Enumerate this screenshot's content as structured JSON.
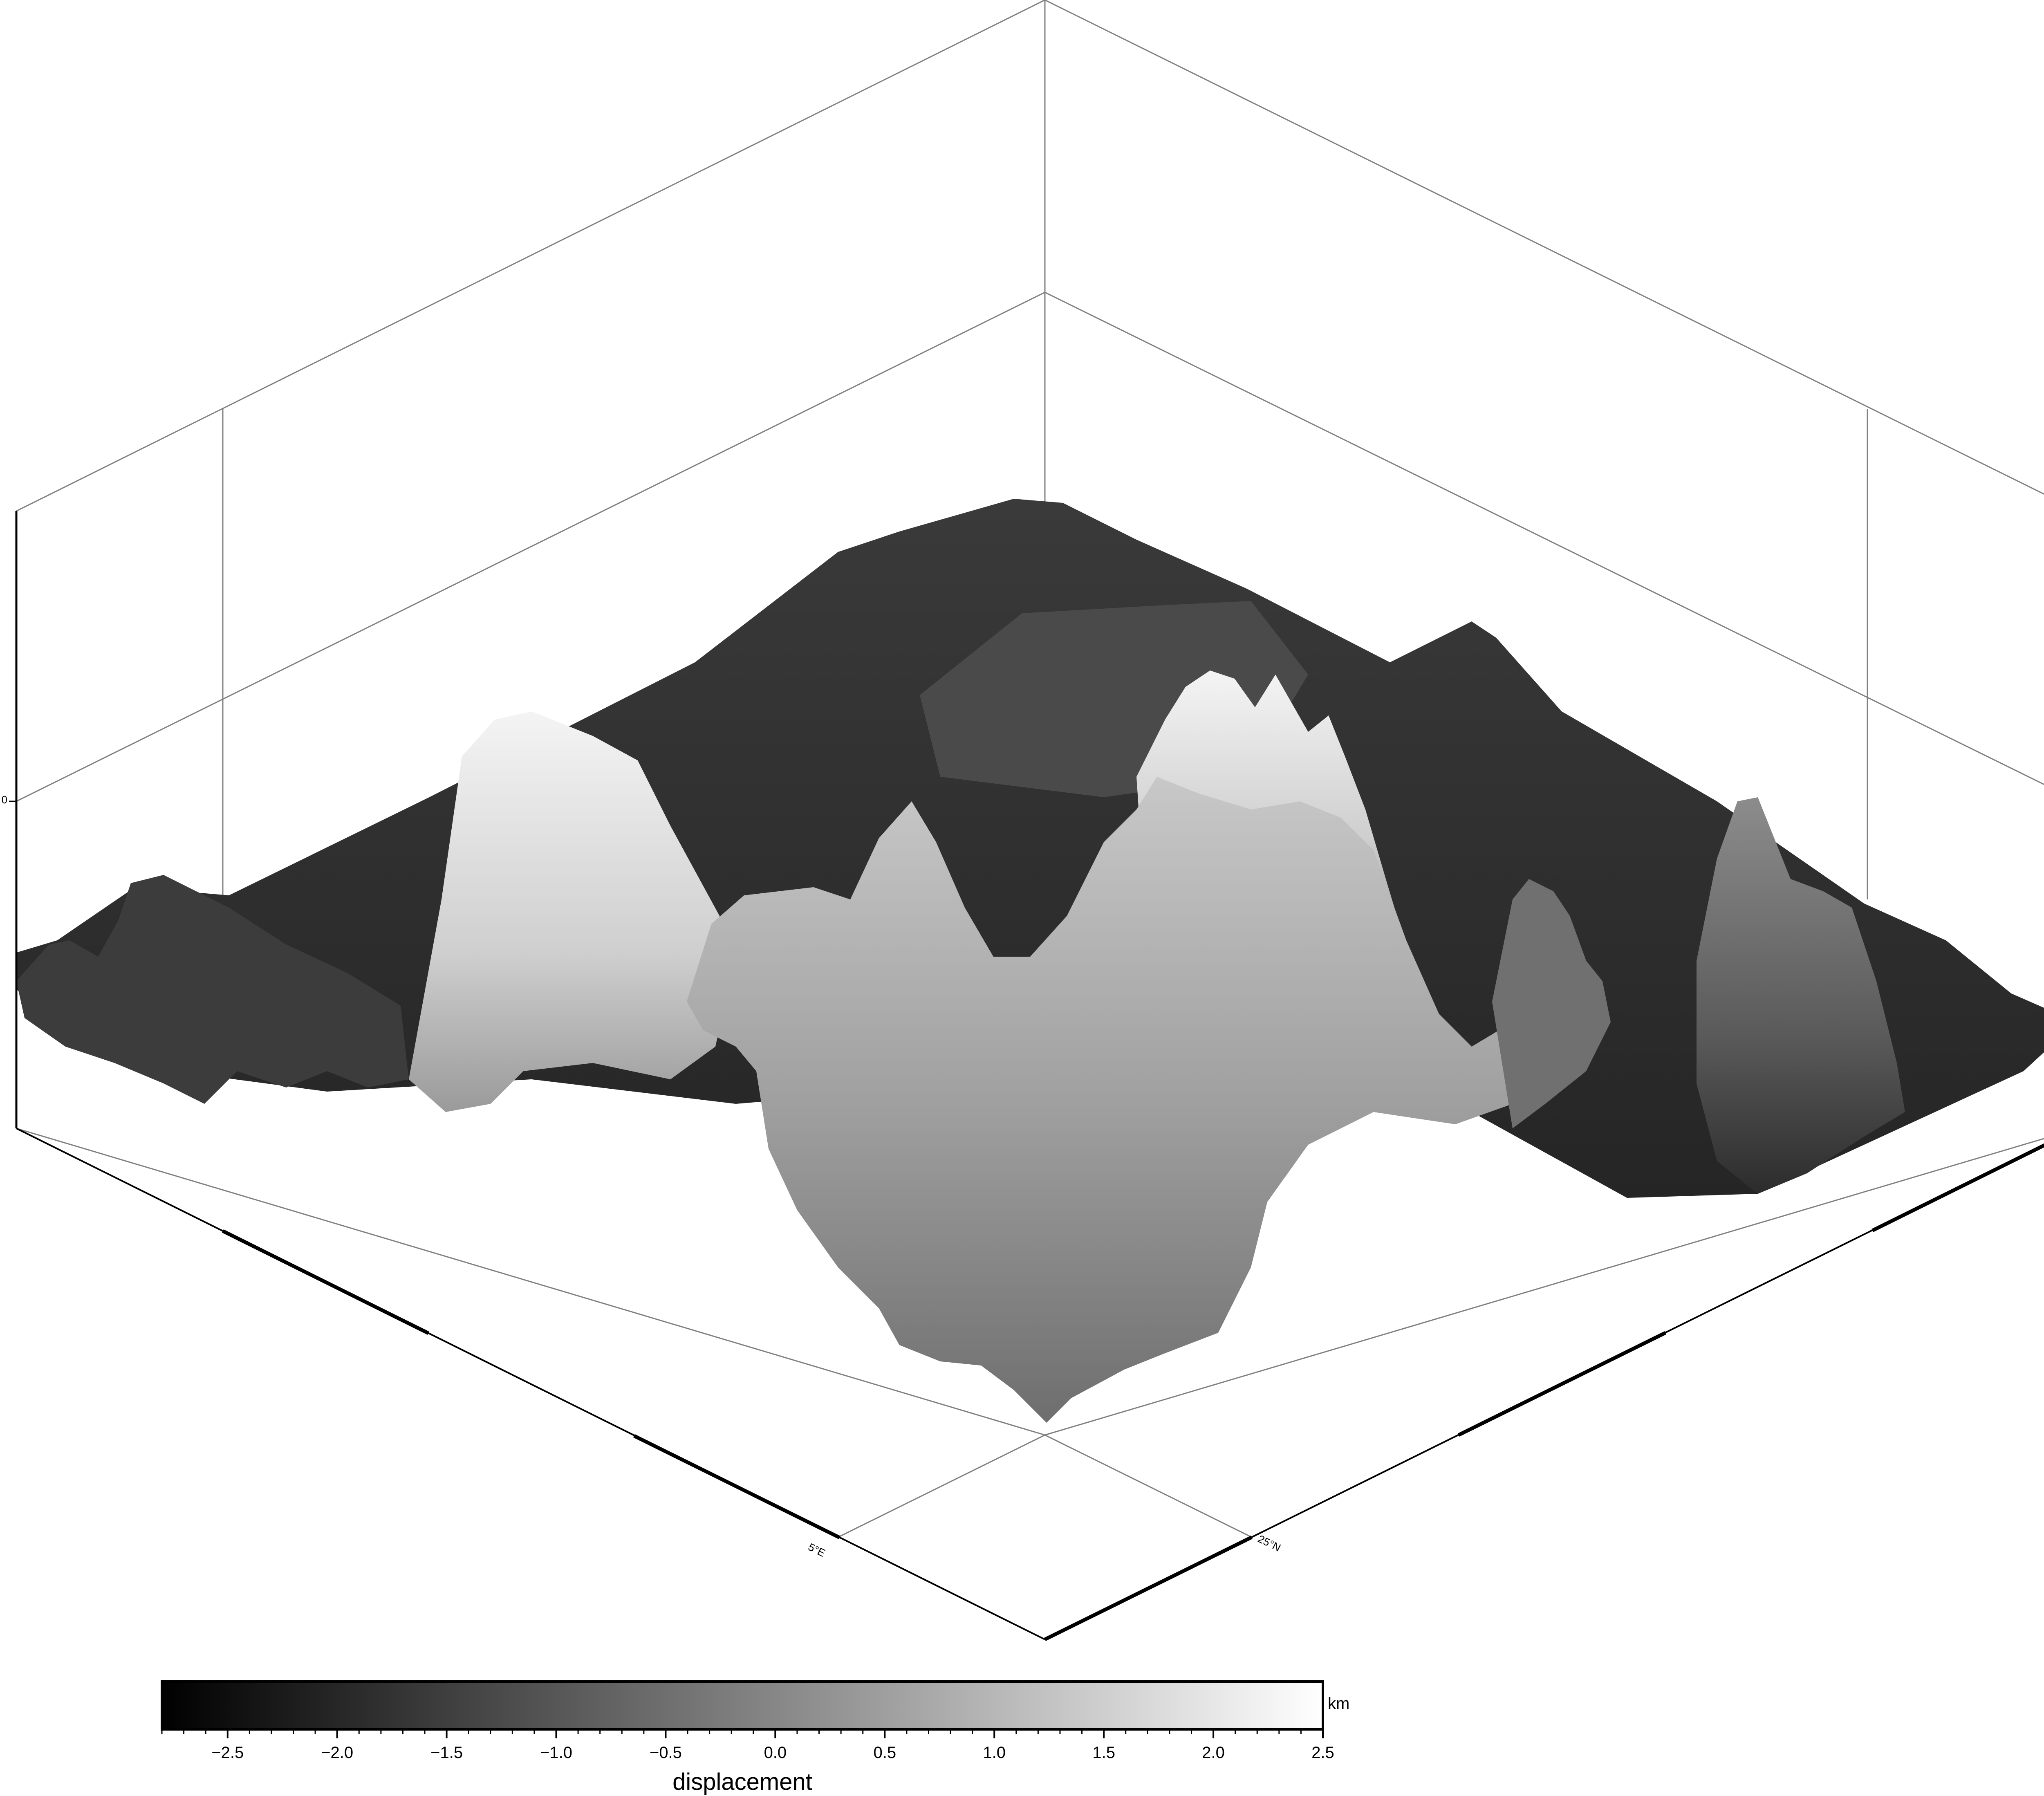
{
  "chart_data": {
    "type": "surface",
    "title": "",
    "x_axis": {
      "tick_label": "5°E",
      "tick_value": 5
    },
    "y_axis": {
      "tick_label": "25°N",
      "tick_value": 25
    },
    "z_axis": {
      "tick_label": "0",
      "tick_value": 0
    },
    "surface": {
      "shading": "grayscale",
      "description_peaks": [
        {
          "name": "left-rear",
          "relative_height": 0.15
        },
        {
          "name": "left-front-bright",
          "relative_height": 0.85
        },
        {
          "name": "center-tall",
          "relative_height": 0.92
        },
        {
          "name": "right-spike",
          "relative_height": 0.55
        },
        {
          "name": "far-right",
          "relative_height": 0.6
        }
      ]
    },
    "colorbar": {
      "label": "displacement",
      "unit": "km",
      "min": -2.8,
      "max": 2.5,
      "ticks": [
        -2.5,
        -2.0,
        -1.5,
        -1.0,
        -0.5,
        0.0,
        0.5,
        1.0,
        1.5,
        2.0,
        2.5
      ],
      "tick_labels": [
        "−2.5",
        "−2.0",
        "−1.5",
        "−1.0",
        "−0.5",
        "0.0",
        "0.5",
        "1.0",
        "1.5",
        "2.0",
        "2.5"
      ],
      "colors": [
        "#000000",
        "#ffffff"
      ]
    }
  }
}
